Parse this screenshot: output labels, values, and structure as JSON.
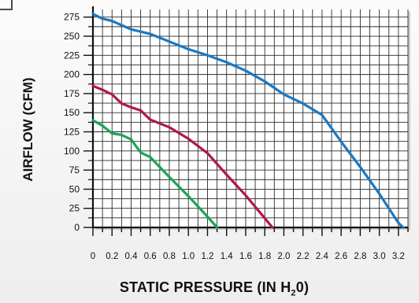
{
  "chart_data": {
    "type": "line",
    "title": "",
    "xlabel": "STATIC PRESSURE (IN H",
    "xlabel_sub": "2",
    "xlabel_end": "0)",
    "ylabel": "AIRFLOW (CFM)",
    "xlim": [
      0,
      3.3
    ],
    "ylim": [
      0,
      285
    ],
    "grid": true,
    "x_ticks": [
      0,
      0.2,
      0.4,
      0.6,
      0.8,
      1.0,
      1.2,
      1.4,
      1.6,
      1.8,
      2.0,
      2.2,
      2.4,
      2.6,
      2.8,
      3.0,
      3.2
    ],
    "x_tick_labels": [
      "0",
      "0.2",
      "0.4",
      "0.6",
      "0.8",
      "1.0",
      "1.2",
      "1.4",
      "1.6",
      "1.8",
      "2.0",
      "2.2",
      "2.4",
      "2.6",
      "2.8",
      "3.0",
      "3.2"
    ],
    "y_ticks": [
      0,
      25,
      50,
      75,
      100,
      125,
      150,
      175,
      200,
      225,
      250,
      275
    ],
    "y_tick_labels": [
      "0",
      "25",
      "50",
      "75",
      "100",
      "125",
      "150",
      "175",
      "200",
      "225",
      "250",
      "275"
    ],
    "series": [
      {
        "color": "#1a78c2",
        "points": [
          [
            0,
            279
          ],
          [
            0.1,
            273
          ],
          [
            0.2,
            270
          ],
          [
            0.4,
            259
          ],
          [
            0.6,
            253
          ],
          [
            0.8,
            243
          ],
          [
            1.0,
            233
          ],
          [
            1.2,
            225
          ],
          [
            1.4,
            216
          ],
          [
            1.6,
            205
          ],
          [
            1.8,
            191
          ],
          [
            2.0,
            174
          ],
          [
            2.2,
            162
          ],
          [
            2.4,
            147
          ],
          [
            2.6,
            112
          ],
          [
            2.8,
            79
          ],
          [
            3.0,
            44
          ],
          [
            3.2,
            6
          ],
          [
            3.25,
            0
          ]
        ]
      },
      {
        "color": "#b3164a",
        "points": [
          [
            0,
            185
          ],
          [
            0.1,
            180
          ],
          [
            0.2,
            174
          ],
          [
            0.3,
            162
          ],
          [
            0.4,
            157
          ],
          [
            0.5,
            153
          ],
          [
            0.6,
            141
          ],
          [
            0.8,
            131
          ],
          [
            1.0,
            116
          ],
          [
            1.2,
            97
          ],
          [
            1.4,
            69
          ],
          [
            1.6,
            42
          ],
          [
            1.8,
            12
          ],
          [
            1.88,
            0
          ]
        ]
      },
      {
        "color": "#17a65a",
        "points": [
          [
            0,
            140
          ],
          [
            0.1,
            133
          ],
          [
            0.2,
            123
          ],
          [
            0.3,
            121
          ],
          [
            0.4,
            115
          ],
          [
            0.5,
            98
          ],
          [
            0.6,
            92
          ],
          [
            0.8,
            66
          ],
          [
            1.0,
            41
          ],
          [
            1.2,
            14
          ],
          [
            1.3,
            0
          ]
        ]
      }
    ]
  },
  "theme": {
    "grid_color": "#2a2a2a",
    "axis_color": "#111111"
  }
}
